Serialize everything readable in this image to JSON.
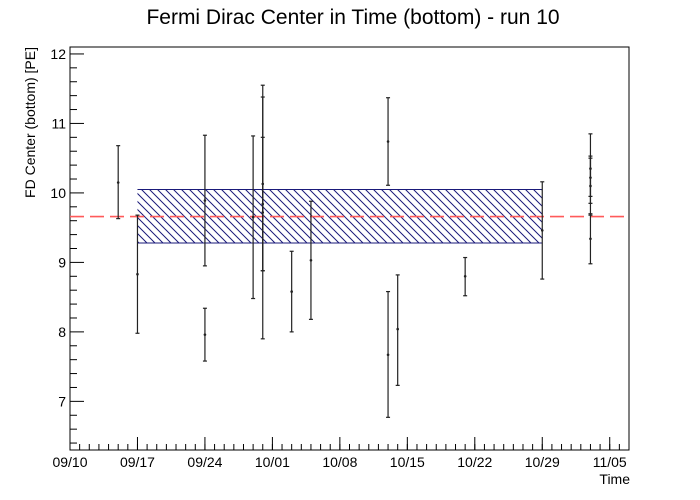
{
  "chart_data": {
    "type": "scatter",
    "title": "Fermi Dirac Center in Time (bottom) - run 10",
    "xlabel": "Time",
    "ylabel": "FD Center (bottom) [PE]",
    "x_ticks": [
      "09/10",
      "09/17",
      "09/24",
      "10/01",
      "10/08",
      "10/15",
      "10/22",
      "10/29",
      "11/05"
    ],
    "y_ticks": [
      7,
      8,
      9,
      10,
      11,
      12
    ],
    "ylim": [
      6.3,
      12.1
    ],
    "xlim": [
      "09/10",
      "11/07"
    ],
    "mean_line": {
      "y": 9.66,
      "color": "#ff5a5a"
    },
    "band": {
      "x_start": "09/17",
      "x_end": "10/29",
      "y_low": 9.28,
      "y_high": 10.05,
      "color": "#1a1a7a"
    },
    "series": [
      {
        "points": [
          {
            "x": "09/15",
            "y": 10.15,
            "lo": 9.63,
            "hi": 10.68
          },
          {
            "x": "09/17",
            "y": 8.83,
            "lo": 7.98,
            "hi": 9.68
          },
          {
            "x": "09/24",
            "y": 9.89,
            "lo": 8.95,
            "hi": 10.83
          },
          {
            "x": "09/24",
            "y": 7.96,
            "lo": 7.58,
            "hi": 8.34
          },
          {
            "x": "09/29",
            "y": 9.65,
            "lo": 8.48,
            "hi": 10.82
          },
          {
            "x": "09/30",
            "y": 10.13,
            "lo": 8.88,
            "hi": 11.38
          },
          {
            "x": "09/30",
            "y": 9.84,
            "lo": 8.88,
            "hi": 10.8
          },
          {
            "x": "09/30",
            "y": 9.72,
            "lo": 7.9,
            "hi": 11.55
          },
          {
            "x": "10/03",
            "y": 8.58,
            "lo": 8.0,
            "hi": 9.16
          },
          {
            "x": "10/05",
            "y": 9.03,
            "lo": 8.18,
            "hi": 9.88
          },
          {
            "x": "10/13",
            "y": 10.74,
            "lo": 10.11,
            "hi": 11.37
          },
          {
            "x": "10/13",
            "y": 7.67,
            "lo": 6.77,
            "hi": 8.58
          },
          {
            "x": "10/14",
            "y": 8.04,
            "lo": 7.23,
            "hi": 8.82
          },
          {
            "x": "10/21",
            "y": 8.8,
            "lo": 8.52,
            "hi": 9.07
          },
          {
            "x": "10/29",
            "y": 9.46,
            "lo": 8.76,
            "hi": 10.16
          },
          {
            "x": "11/03",
            "y": 10.35,
            "lo": 9.85,
            "hi": 10.85
          },
          {
            "x": "11/03",
            "y": 10.22,
            "lo": 9.95,
            "hi": 10.5
          },
          {
            "x": "11/03",
            "y": 10.1,
            "lo": 9.68,
            "hi": 10.53
          },
          {
            "x": "11/03",
            "y": 9.34,
            "lo": 8.98,
            "hi": 9.7
          }
        ]
      }
    ]
  }
}
